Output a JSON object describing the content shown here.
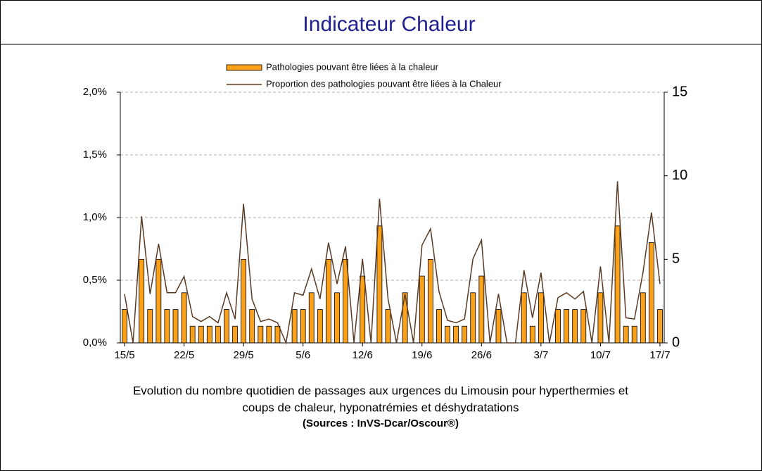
{
  "chart_data": {
    "type": "bar-line",
    "title": "Indicateur Chaleur",
    "caption": [
      "Evolution du nombre quotidien de passages aux urgences du Limousin pour hyperthermies et",
      "coups de chaleur, hyponatrémies et déshydratations"
    ],
    "source": "(Sources : InVS-Dcar/Oscour®)",
    "categories": [
      "15/5",
      null,
      null,
      null,
      null,
      null,
      null,
      "22/5",
      null,
      null,
      null,
      null,
      null,
      null,
      "29/5",
      null,
      null,
      null,
      null,
      null,
      null,
      "5/6",
      null,
      null,
      null,
      null,
      null,
      null,
      "12/6",
      null,
      null,
      null,
      null,
      null,
      null,
      "19/6",
      null,
      null,
      null,
      null,
      null,
      null,
      "26/6",
      null,
      null,
      null,
      null,
      null,
      null,
      "3/7",
      null,
      null,
      null,
      null,
      null,
      null,
      "10/7",
      null,
      null,
      null,
      null,
      null,
      null,
      "17/7"
    ],
    "series": [
      {
        "name": "Pathologies pouvant être liées à la chaleur",
        "type": "bar",
        "axis": "y2",
        "color": "#f9a11b",
        "values": [
          2,
          0,
          5,
          2,
          5,
          2,
          2,
          3,
          1,
          1,
          1,
          1,
          2,
          1,
          5,
          2,
          1,
          1,
          1,
          0,
          2,
          2,
          3,
          2,
          5,
          3,
          5,
          0,
          4,
          0,
          7,
          2,
          0,
          3,
          0,
          4,
          5,
          2,
          1,
          1,
          1,
          3,
          4,
          0,
          2,
          0,
          0,
          3,
          1,
          3,
          0,
          2,
          2,
          2,
          2,
          0,
          3,
          0,
          7,
          1,
          1,
          3,
          6,
          2
        ]
      },
      {
        "name": "Proportion des pathologies pouvant être liées à la Chaleur",
        "type": "line",
        "axis": "y",
        "color": "#5a3a22",
        "values": [
          0.39,
          0,
          1.01,
          0.39,
          0.79,
          0.4,
          0.4,
          0.53,
          0.21,
          0.17,
          0.21,
          0.16,
          0.4,
          0.19,
          1.11,
          0.35,
          0.17,
          0.19,
          0.16,
          0,
          0.4,
          0.38,
          0.59,
          0.35,
          0.8,
          0.47,
          0.77,
          0,
          0.67,
          0,
          1.15,
          0.35,
          0,
          0.39,
          0,
          0.78,
          0.91,
          0.41,
          0.18,
          0.16,
          0.19,
          0.67,
          0.82,
          0,
          0.39,
          0,
          0,
          0.58,
          0.2,
          0.56,
          0,
          0.36,
          0.4,
          0.35,
          0.41,
          0,
          0.61,
          0,
          1.29,
          0.2,
          0.19,
          0.56,
          1.04,
          0.47
        ]
      }
    ],
    "ylim": [
      0,
      2
    ],
    "yticks": [
      {
        "value": 0,
        "label": "0,0%"
      },
      {
        "value": 0.5,
        "label": "0,5%"
      },
      {
        "value": 1,
        "label": "1,0%"
      },
      {
        "value": 1.5,
        "label": "1,5%"
      },
      {
        "value": 2,
        "label": "2,0%"
      }
    ],
    "y2lim": [
      0,
      15
    ],
    "y2ticks": [
      0,
      5,
      10,
      15
    ],
    "grid": true
  }
}
